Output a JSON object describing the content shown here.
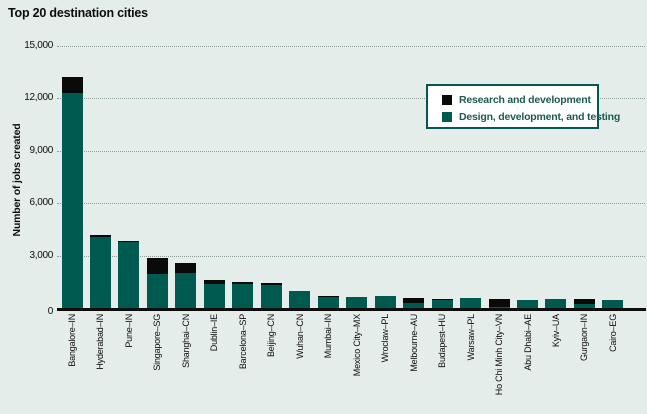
{
  "title": "Top 20 destination cities",
  "colors": {
    "background": "#e5edeb",
    "rd_black": "#0a0a0a",
    "ddt_teal": "#005a50",
    "legend_border": "#005a50",
    "legend_text": "#1c5b51",
    "axis": "#0d0d0d",
    "grid": "#8d9e99"
  },
  "chart_data": {
    "type": "bar",
    "stacked": true,
    "title": "Top 20 destination cities",
    "xlabel": "",
    "ylabel": "Number of jobs created",
    "ylim": [
      0,
      15000
    ],
    "grid": "dotted horizontal gridlines at each tick",
    "legend_position": "upper right, inside plot",
    "yticks": [
      {
        "label": "15,000",
        "value": 15000
      },
      {
        "label": "12,000",
        "value": 12000
      },
      {
        "label": "9,000",
        "value": 9000
      },
      {
        "label": "6,000",
        "value": 6000
      },
      {
        "label": "3,000",
        "value": 3000
      },
      {
        "label": "0",
        "value": 0
      }
    ],
    "categories": [
      "Bangalore–IN",
      "Hyderabad–IN",
      "Pune–IN",
      "Singapore–SG",
      "Shanghai–CN",
      "Dublin–IE",
      "Barcelona–SP",
      "Beijing–CN",
      "Wuhan–CN",
      "Mumbai–IN",
      "Mexico City–MX",
      "Wroclaw–PL",
      "Melbourne–AU",
      "Budapest–HU",
      "Warsaw–PL",
      "Ho Chi Minh City–VN",
      "Abu Dhabi–AE",
      "Kyiv–UA",
      "Gurgaon–IN",
      "Cairo–EG"
    ],
    "series": [
      {
        "name": "Research and development",
        "color": "#0a0a0a",
        "values": [
          900,
          150,
          80,
          900,
          550,
          250,
          100,
          120,
          0,
          80,
          0,
          0,
          250,
          60,
          0,
          450,
          0,
          0,
          280,
          0
        ]
      },
      {
        "name": "Design, development, and testing",
        "color": "#005a50",
        "values": [
          12300,
          4050,
          3770,
          1950,
          2000,
          1350,
          1400,
          1330,
          1000,
          620,
          630,
          660,
          300,
          440,
          570,
          80,
          470,
          530,
          250,
          440
        ]
      }
    ]
  }
}
